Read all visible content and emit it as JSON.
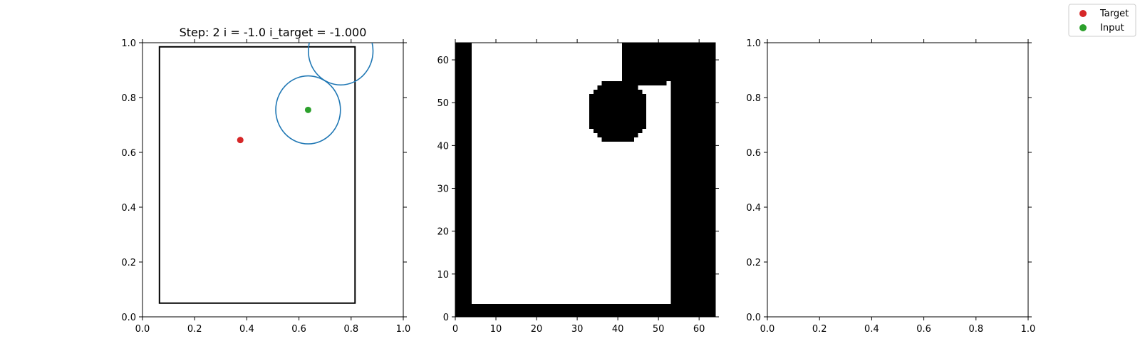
{
  "chart_data": [
    {
      "type": "scatter",
      "title": "Step: 2 i = -1.0 i_target = -1.000",
      "xlim": [
        0,
        1
      ],
      "ylim": [
        0,
        1
      ],
      "xticks": [
        "0.0",
        "0.2",
        "0.4",
        "0.6",
        "0.8",
        "1.0"
      ],
      "yticks": [
        "0.0",
        "0.2",
        "0.4",
        "0.6",
        "0.8",
        "1.0"
      ],
      "grid": false,
      "rectangle": {
        "x0": 0.065,
        "y0": 0.05,
        "x1": 0.815,
        "y1": 0.985,
        "color": "#000000"
      },
      "circles": [
        {
          "cx": 0.635,
          "cy": 0.755,
          "r": 0.124,
          "color": "#1f77b4"
        },
        {
          "cx": 0.76,
          "cy": 0.97,
          "r": 0.124,
          "color": "#1f77b4"
        }
      ],
      "points": [
        {
          "series": "Target",
          "x": 0.375,
          "y": 0.645,
          "color": "#d62728"
        },
        {
          "series": "Input",
          "x": 0.635,
          "y": 0.755,
          "color": "#2ca02c"
        }
      ]
    },
    {
      "type": "heatmap",
      "xlim": [
        0,
        64
      ],
      "ylim": [
        0,
        64
      ],
      "xticks": [
        "0",
        "10",
        "20",
        "30",
        "40",
        "50",
        "60"
      ],
      "yticks": [
        "0",
        "10",
        "20",
        "30",
        "40",
        "50",
        "60"
      ],
      "colors": {
        "occupied": "#000000",
        "free": "#ffffff"
      },
      "black_regions": [
        {
          "x0": 0,
          "y0": 0,
          "x1": 4,
          "y1": 64
        },
        {
          "x0": 0,
          "y0": 0,
          "x1": 64,
          "y1": 3
        },
        {
          "x0": 53,
          "y0": 0,
          "x1": 64,
          "y1": 64
        },
        {
          "x0": 41,
          "y0": 55,
          "x1": 64,
          "y1": 64
        },
        {
          "x0": 42,
          "y0": 54,
          "x1": 52,
          "y1": 55
        }
      ],
      "blob": {
        "cx": 40,
        "cy": 48,
        "r": 7.5
      }
    },
    {
      "type": "scatter",
      "xlim": [
        0,
        1
      ],
      "ylim": [
        0,
        1
      ],
      "xticks": [
        "0.0",
        "0.2",
        "0.4",
        "0.6",
        "0.8",
        "1.0"
      ],
      "yticks": [
        "0.0",
        "0.2",
        "0.4",
        "0.6",
        "0.8",
        "1.0"
      ],
      "points": []
    }
  ],
  "legend": {
    "placement": "top-right",
    "entries": [
      {
        "label": "Target",
        "color": "#d62728"
      },
      {
        "label": "Input",
        "color": "#2ca02c"
      }
    ]
  }
}
